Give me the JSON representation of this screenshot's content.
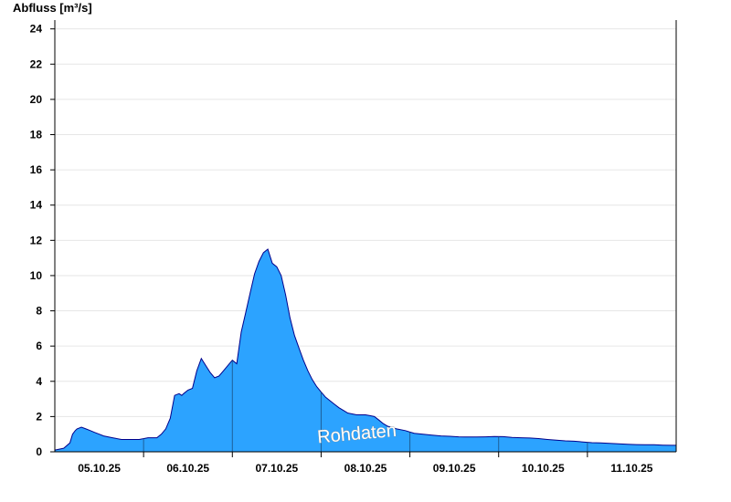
{
  "chart_data": {
    "type": "area",
    "ylabel": "Abfluss [m³/s]",
    "ylim": [
      0,
      24.5
    ],
    "yticks": [
      0,
      2,
      4,
      6,
      8,
      10,
      12,
      14,
      16,
      18,
      20,
      22,
      24
    ],
    "x_unit": "days since 05.10.25 00:00",
    "xlim": [
      -0.25,
      6.75
    ],
    "day_boundaries": [
      0.75,
      1.75,
      2.75,
      3.75,
      4.75,
      5.75
    ],
    "categories": [
      "05.10.25",
      "06.10.25",
      "07.10.25",
      "08.10.25",
      "09.10.25",
      "10.10.25",
      "11.10.25"
    ],
    "category_positions": [
      0.25,
      1.25,
      2.25,
      3.25,
      4.25,
      5.25,
      6.25
    ],
    "grid": true,
    "watermark": "Rohdaten",
    "colors": {
      "fill": "#2ca3ff",
      "line": "#00008b",
      "grid": "#e6e6e6",
      "axis": "#000000",
      "day_line": "#1a4f80"
    },
    "series": [
      {
        "name": "Abfluss",
        "x": [
          -0.25,
          -0.15,
          -0.08,
          -0.05,
          -0.02,
          0.0,
          0.05,
          0.1,
          0.15,
          0.2,
          0.25,
          0.3,
          0.4,
          0.5,
          0.6,
          0.7,
          0.8,
          0.9,
          0.95,
          1.0,
          1.05,
          1.1,
          1.15,
          1.18,
          1.2,
          1.25,
          1.3,
          1.35,
          1.4,
          1.45,
          1.5,
          1.55,
          1.6,
          1.65,
          1.7,
          1.75,
          1.8,
          1.85,
          1.9,
          1.95,
          2.0,
          2.05,
          2.1,
          2.15,
          2.2,
          2.25,
          2.3,
          2.35,
          2.4,
          2.45,
          2.5,
          2.55,
          2.6,
          2.65,
          2.7,
          2.75,
          2.8,
          2.85,
          2.9,
          2.95,
          3.0,
          3.05,
          3.1,
          3.15,
          3.2,
          3.25,
          3.3,
          3.35,
          3.4,
          3.45,
          3.5,
          3.6,
          3.7,
          3.75,
          3.8,
          3.9,
          4.0,
          4.1,
          4.2,
          4.3,
          4.4,
          4.5,
          4.6,
          4.7,
          4.8,
          4.9,
          5.0,
          5.1,
          5.2,
          5.3,
          5.4,
          5.5,
          5.6,
          5.7,
          5.8,
          5.9,
          6.0,
          6.1,
          6.2,
          6.3,
          6.4,
          6.5,
          6.6,
          6.7,
          6.75
        ],
        "values": [
          0.1,
          0.2,
          0.5,
          1.0,
          1.2,
          1.3,
          1.4,
          1.3,
          1.2,
          1.1,
          1.0,
          0.9,
          0.8,
          0.7,
          0.7,
          0.7,
          0.8,
          0.8,
          1.0,
          1.3,
          1.9,
          3.2,
          3.3,
          3.2,
          3.3,
          3.5,
          3.6,
          4.6,
          5.3,
          4.9,
          4.5,
          4.2,
          4.3,
          4.6,
          4.9,
          5.2,
          5.0,
          6.8,
          7.9,
          9.0,
          10.1,
          10.8,
          11.3,
          11.5,
          10.7,
          10.5,
          10.0,
          8.9,
          7.6,
          6.6,
          5.9,
          5.2,
          4.6,
          4.1,
          3.7,
          3.4,
          3.1,
          2.9,
          2.7,
          2.5,
          2.35,
          2.2,
          2.15,
          2.1,
          2.1,
          2.1,
          2.05,
          2.0,
          1.8,
          1.6,
          1.45,
          1.3,
          1.2,
          1.12,
          1.05,
          1.0,
          0.95,
          0.9,
          0.88,
          0.85,
          0.84,
          0.84,
          0.85,
          0.87,
          0.86,
          0.82,
          0.8,
          0.78,
          0.75,
          0.7,
          0.66,
          0.62,
          0.6,
          0.56,
          0.52,
          0.5,
          0.48,
          0.45,
          0.43,
          0.41,
          0.4,
          0.4,
          0.38,
          0.37,
          0.37
        ]
      }
    ]
  }
}
